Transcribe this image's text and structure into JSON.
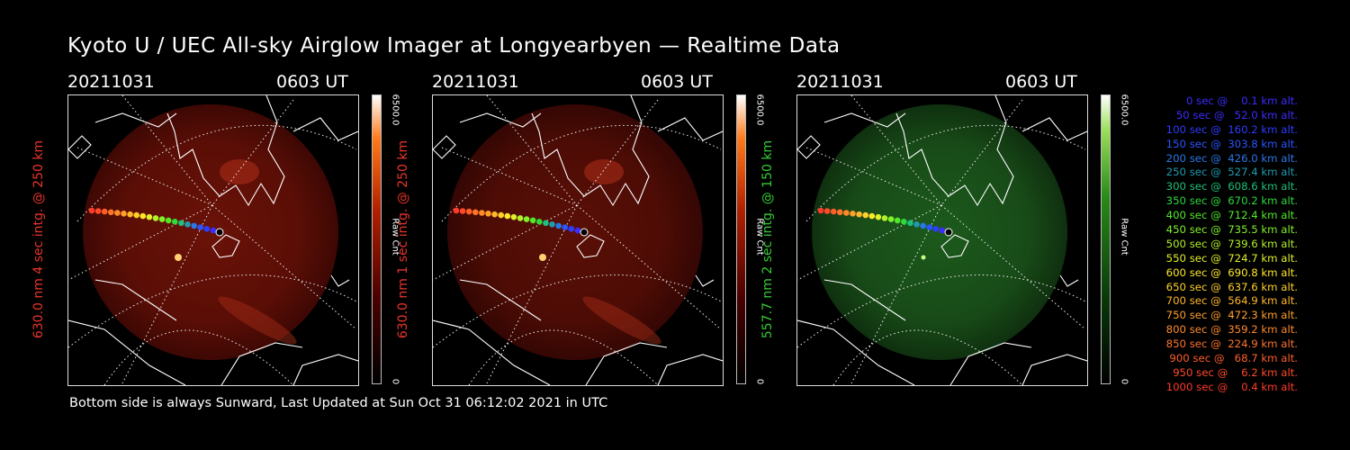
{
  "title": "Kyoto U / UEC All-sky Airglow Imager at Longyearbyen — Realtime Data",
  "footer": "Bottom side is always Sunward, Last Updated at Sun Oct 31 06:12:02 2021 in UTC",
  "panels": [
    {
      "date": "20211031",
      "time": "0603 UT",
      "ylabel": "630.0 nm 4 sec intg. @ 250 km",
      "label_color": "#e8342a",
      "cbar_max": "6500.0",
      "cbar_min": "0",
      "cbar_unit": "Raw Cnt",
      "hue": "red",
      "brightness": 1.0
    },
    {
      "date": "20211031",
      "time": "0603 UT",
      "ylabel": "630.0 nm 1 sec intg. @ 250 km",
      "label_color": "#e8342a",
      "cbar_max": "6500.0",
      "cbar_min": "0",
      "cbar_unit": "Raw Cnt",
      "hue": "red",
      "brightness": 0.85
    },
    {
      "date": "20211031",
      "time": "0603 UT",
      "ylabel": "557.7 nm 2 sec intg. @ 150 km",
      "label_color": "#33cc33",
      "cbar_max": "6500.0",
      "cbar_min": "0",
      "cbar_unit": "Raw Cnt",
      "hue": "green",
      "brightness": 1.0
    }
  ],
  "legend": [
    {
      "text": "   0 sec @    0.1 km alt.",
      "color": "#3b2cff"
    },
    {
      "text": "  50 sec @   52.0 km alt.",
      "color": "#3b2cff"
    },
    {
      "text": " 100 sec @  160.2 km alt.",
      "color": "#2e3cff"
    },
    {
      "text": " 150 sec @  303.8 km alt.",
      "color": "#2a55ff"
    },
    {
      "text": " 200 sec @  426.0 km alt.",
      "color": "#2a78e8"
    },
    {
      "text": " 250 sec @  527.4 km alt.",
      "color": "#1f9bb0"
    },
    {
      "text": " 300 sec @  608.6 km alt.",
      "color": "#1fc07a"
    },
    {
      "text": " 350 sec @  670.2 km alt.",
      "color": "#2fd83c"
    },
    {
      "text": " 400 sec @  712.4 km alt.",
      "color": "#52e82a"
    },
    {
      "text": " 450 sec @  735.5 km alt.",
      "color": "#80f02a"
    },
    {
      "text": " 500 sec @  739.6 km alt.",
      "color": "#b2f02a"
    },
    {
      "text": " 550 sec @  724.7 km alt.",
      "color": "#e0f02a"
    },
    {
      "text": " 600 sec @  690.8 km alt.",
      "color": "#ffe82a"
    },
    {
      "text": " 650 sec @  637.6 km alt.",
      "color": "#ffd02a"
    },
    {
      "text": " 700 sec @  564.9 km alt.",
      "color": "#ffb82a"
    },
    {
      "text": " 750 sec @  472.3 km alt.",
      "color": "#ff9f2a"
    },
    {
      "text": " 800 sec @  359.2 km alt.",
      "color": "#ff8a2a"
    },
    {
      "text": " 850 sec @  224.9 km alt.",
      "color": "#ff732a"
    },
    {
      "text": " 900 sec @   68.7 km alt.",
      "color": "#ff5e2a"
    },
    {
      "text": " 950 sec @    6.2 km alt.",
      "color": "#ff4a2a"
    },
    {
      "text": "1000 sec @    0.4 km alt.",
      "color": "#ff3a2a"
    }
  ],
  "track_colors": [
    "#ff3a2a",
    "#ff4a2a",
    "#ff5e2a",
    "#ff732a",
    "#ff8a2a",
    "#ff9f2a",
    "#ffb82a",
    "#ffd02a",
    "#ffe82a",
    "#e0f02a",
    "#b2f02a",
    "#80f02a",
    "#52e82a",
    "#2fd83c",
    "#1fc07a",
    "#1f9bb0",
    "#2a78e8",
    "#2a55ff",
    "#2e3cff",
    "#3b2cff",
    "#3b2cff"
  ]
}
